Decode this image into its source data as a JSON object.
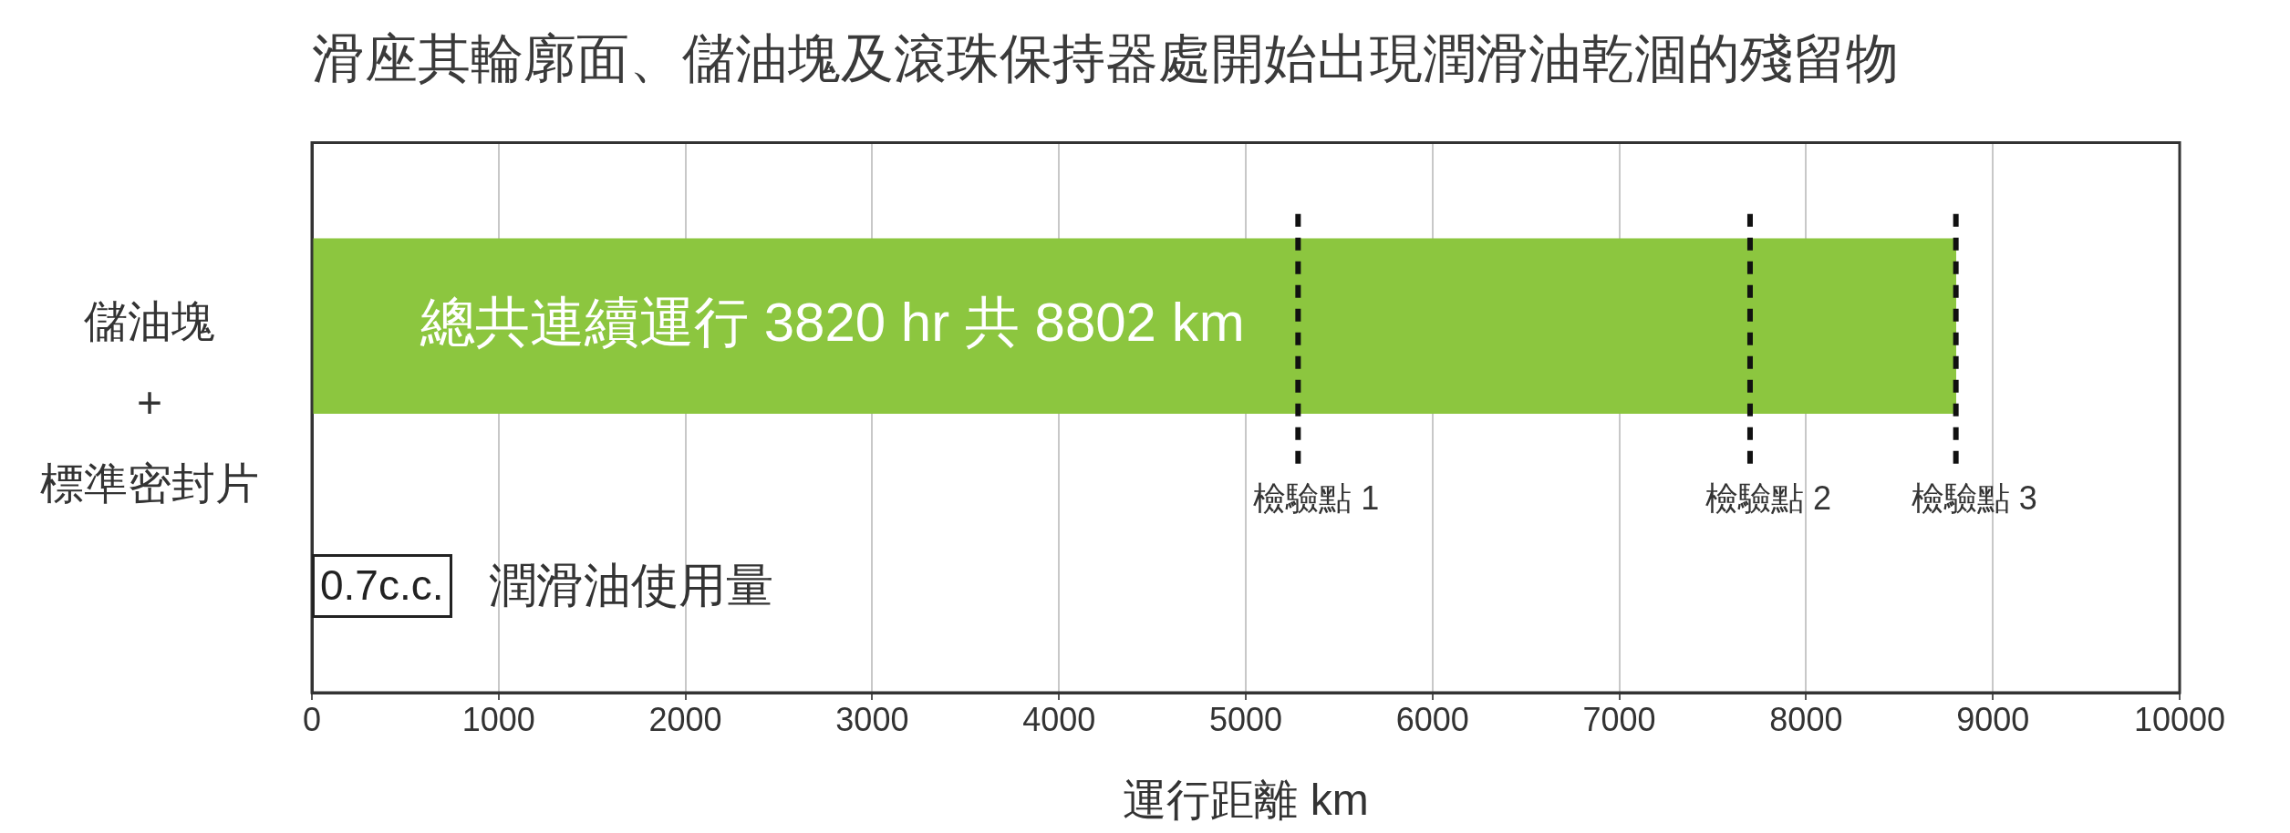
{
  "chart_data": {
    "type": "bar",
    "orientation": "horizontal",
    "title": "滑座其輪廓面、儲油塊及滾珠保持器處開始出現潤滑油乾涸的殘留物",
    "xlabel": "運行距離 km",
    "categories": [
      "儲油塊 + 標準密封片"
    ],
    "values": [
      8802
    ],
    "color": "#8cc63f",
    "value_labels": [
      "總共連續運行 3820 hr 共 8802 km"
    ],
    "xlim": [
      0,
      10000
    ],
    "xticks": [
      0,
      1000,
      2000,
      3000,
      4000,
      5000,
      6000,
      7000,
      8000,
      9000,
      10000
    ],
    "grid": "x",
    "ref_lines": [
      {
        "axis": "x",
        "value": 5280,
        "label": "檢驗點 1",
        "color": "#111111",
        "line_style": "dashed"
      },
      {
        "axis": "x",
        "value": 7700,
        "label": "檢驗點 2",
        "color": "#111111",
        "line_style": "dashed"
      },
      {
        "axis": "x",
        "value": 8802,
        "label": "檢驗點 3",
        "color": "#111111",
        "line_style": "dashed"
      }
    ],
    "annotations": [
      "0.7c.c.",
      "潤滑油使用量"
    ]
  }
}
